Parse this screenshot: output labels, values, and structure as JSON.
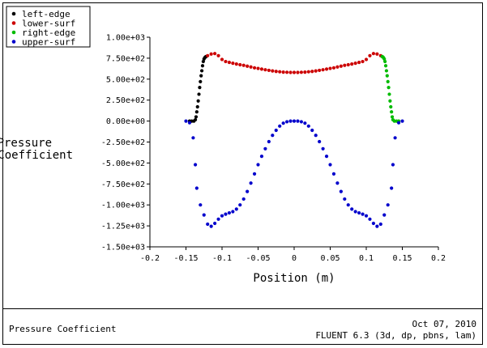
{
  "footer": {
    "left_title": "Pressure Coefficient",
    "date": "Oct 07, 2010",
    "solver": "FLUENT 6.3 (3d, dp, pbns, lam)"
  },
  "chart_data": {
    "type": "scatter",
    "xlabel": "Position (m)",
    "ylabel_lines": [
      "Pressure",
      "Coefficient"
    ],
    "xlim": [
      -0.2,
      0.2
    ],
    "ylim": [
      -1500,
      1000
    ],
    "x_ticks": [
      -0.2,
      -0.15,
      -0.1,
      -0.05,
      0,
      0.05,
      0.1,
      0.15,
      0.2
    ],
    "x_tick_labels": [
      "-0.2",
      "-0.15",
      "-0.1",
      "-0.05",
      "0",
      "0.05",
      "0.1",
      "0.15",
      "0.2"
    ],
    "y_ticks": [
      1000,
      750,
      500,
      250,
      0,
      -250,
      -500,
      -750,
      -1000,
      -1250,
      -1500
    ],
    "y_tick_labels": [
      "1.00e+03",
      "7.50e+02",
      "5.00e+02",
      "2.50e+02",
      "0.00e+00",
      "-2.50e+02",
      "-5.00e+02",
      "-7.50e+02",
      "-1.00e+03",
      "-1.25e+03",
      "-1.50e+03"
    ],
    "grid": false,
    "legend_position": "top-left",
    "series": [
      {
        "name": "left-edge",
        "color": "#000000",
        "points": [
          [
            -0.145,
            0
          ],
          [
            -0.142,
            0
          ],
          [
            -0.139,
            0
          ],
          [
            -0.137,
            15
          ],
          [
            -0.136,
            50
          ],
          [
            -0.135,
            110
          ],
          [
            -0.134,
            170
          ],
          [
            -0.133,
            240
          ],
          [
            -0.132,
            320
          ],
          [
            -0.131,
            400
          ],
          [
            -0.13,
            470
          ],
          [
            -0.129,
            540
          ],
          [
            -0.128,
            600
          ],
          [
            -0.127,
            660
          ],
          [
            -0.126,
            710
          ],
          [
            -0.125,
            740
          ],
          [
            -0.124,
            755
          ],
          [
            -0.123,
            765
          ],
          [
            -0.122,
            770
          ]
        ]
      },
      {
        "name": "lower-surf",
        "color": "#cc0000",
        "points": [
          [
            -0.12,
            780
          ],
          [
            -0.115,
            800
          ],
          [
            -0.11,
            805
          ],
          [
            -0.105,
            780
          ],
          [
            -0.1,
            735
          ],
          [
            -0.095,
            710
          ],
          [
            -0.09,
            700
          ],
          [
            -0.085,
            690
          ],
          [
            -0.08,
            680
          ],
          [
            -0.075,
            672
          ],
          [
            -0.07,
            665
          ],
          [
            -0.065,
            655
          ],
          [
            -0.06,
            645
          ],
          [
            -0.055,
            635
          ],
          [
            -0.05,
            628
          ],
          [
            -0.045,
            620
          ],
          [
            -0.04,
            612
          ],
          [
            -0.035,
            605
          ],
          [
            -0.03,
            598
          ],
          [
            -0.025,
            592
          ],
          [
            -0.02,
            588
          ],
          [
            -0.015,
            584
          ],
          [
            -0.01,
            582
          ],
          [
            -0.005,
            580
          ],
          [
            0,
            580
          ],
          [
            0.005,
            580
          ],
          [
            0.01,
            582
          ],
          [
            0.015,
            584
          ],
          [
            0.02,
            588
          ],
          [
            0.025,
            592
          ],
          [
            0.03,
            598
          ],
          [
            0.035,
            605
          ],
          [
            0.04,
            612
          ],
          [
            0.045,
            620
          ],
          [
            0.05,
            628
          ],
          [
            0.055,
            635
          ],
          [
            0.06,
            645
          ],
          [
            0.065,
            655
          ],
          [
            0.07,
            665
          ],
          [
            0.075,
            672
          ],
          [
            0.08,
            680
          ],
          [
            0.085,
            690
          ],
          [
            0.09,
            700
          ],
          [
            0.095,
            710
          ],
          [
            0.1,
            735
          ],
          [
            0.105,
            780
          ],
          [
            0.11,
            805
          ],
          [
            0.115,
            800
          ],
          [
            0.12,
            780
          ]
        ]
      },
      {
        "name": "right-edge",
        "color": "#00bb00",
        "points": [
          [
            0.122,
            770
          ],
          [
            0.123,
            765
          ],
          [
            0.124,
            755
          ],
          [
            0.125,
            740
          ],
          [
            0.126,
            710
          ],
          [
            0.127,
            660
          ],
          [
            0.128,
            600
          ],
          [
            0.129,
            540
          ],
          [
            0.13,
            470
          ],
          [
            0.131,
            400
          ],
          [
            0.132,
            320
          ],
          [
            0.133,
            240
          ],
          [
            0.134,
            170
          ],
          [
            0.135,
            110
          ],
          [
            0.136,
            50
          ],
          [
            0.137,
            15
          ],
          [
            0.139,
            0
          ],
          [
            0.142,
            0
          ],
          [
            0.145,
            0
          ]
        ]
      },
      {
        "name": "upper-surf",
        "color": "#0000cc",
        "points": [
          [
            -0.15,
            0
          ],
          [
            -0.145,
            -20
          ],
          [
            -0.14,
            -200
          ],
          [
            -0.137,
            -520
          ],
          [
            -0.135,
            -800
          ],
          [
            -0.13,
            -1000
          ],
          [
            -0.125,
            -1120
          ],
          [
            -0.12,
            -1230
          ],
          [
            -0.115,
            -1255
          ],
          [
            -0.11,
            -1220
          ],
          [
            -0.105,
            -1170
          ],
          [
            -0.1,
            -1130
          ],
          [
            -0.095,
            -1110
          ],
          [
            -0.09,
            -1095
          ],
          [
            -0.085,
            -1080
          ],
          [
            -0.08,
            -1050
          ],
          [
            -0.075,
            -1000
          ],
          [
            -0.07,
            -930
          ],
          [
            -0.065,
            -840
          ],
          [
            -0.06,
            -740
          ],
          [
            -0.055,
            -630
          ],
          [
            -0.05,
            -520
          ],
          [
            -0.045,
            -420
          ],
          [
            -0.04,
            -330
          ],
          [
            -0.035,
            -245
          ],
          [
            -0.03,
            -170
          ],
          [
            -0.025,
            -110
          ],
          [
            -0.02,
            -60
          ],
          [
            -0.015,
            -25
          ],
          [
            -0.01,
            -8
          ],
          [
            -0.005,
            0
          ],
          [
            0,
            0
          ],
          [
            0.005,
            0
          ],
          [
            0.01,
            -8
          ],
          [
            0.015,
            -25
          ],
          [
            0.02,
            -60
          ],
          [
            0.025,
            -110
          ],
          [
            0.03,
            -170
          ],
          [
            0.035,
            -245
          ],
          [
            0.04,
            -330
          ],
          [
            0.045,
            -420
          ],
          [
            0.05,
            -520
          ],
          [
            0.055,
            -630
          ],
          [
            0.06,
            -740
          ],
          [
            0.065,
            -840
          ],
          [
            0.07,
            -930
          ],
          [
            0.075,
            -1000
          ],
          [
            0.08,
            -1050
          ],
          [
            0.085,
            -1080
          ],
          [
            0.09,
            -1095
          ],
          [
            0.095,
            -1110
          ],
          [
            0.1,
            -1130
          ],
          [
            0.105,
            -1170
          ],
          [
            0.11,
            -1220
          ],
          [
            0.115,
            -1255
          ],
          [
            0.12,
            -1230
          ],
          [
            0.125,
            -1120
          ],
          [
            0.13,
            -1000
          ],
          [
            0.135,
            -800
          ],
          [
            0.137,
            -520
          ],
          [
            0.14,
            -200
          ],
          [
            0.145,
            -20
          ],
          [
            0.15,
            0
          ]
        ]
      }
    ]
  }
}
